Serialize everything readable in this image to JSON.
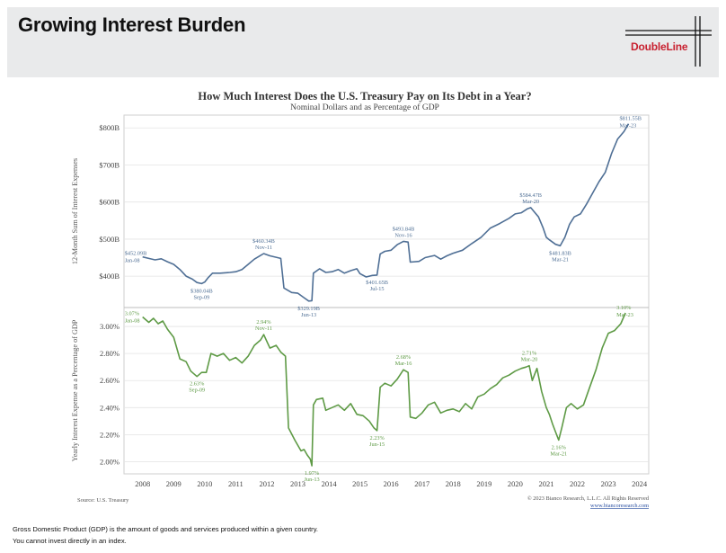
{
  "header": {
    "title": "Growing Interest Burden",
    "logo_text": "DoubleLine"
  },
  "footer": {
    "line1": "Gross Domestic Product (GDP) is the amount of goods and services produced within a given country.",
    "line2": "You cannot invest directly in an index."
  },
  "chart_data": {
    "type": "line",
    "title": "How Much Interest Does the U.S. Treasury Pay on Its Debt in a Year?",
    "subtitle": "Nominal Dollars and as Percentage of GDP",
    "source": "Source: U.S. Treasury",
    "copyright": "© 2023 Bianco Research, L.L.C. All Rights Reserved",
    "website": "www.biancoresearch.com",
    "colors": {
      "dollars": "#4f6f95",
      "gdp": "#5e9a45"
    },
    "x_ticks": [
      "2008",
      "2009",
      "2010",
      "2011",
      "2012",
      "2013",
      "2014",
      "2015",
      "2016",
      "2017",
      "2018",
      "2019",
      "2020",
      "2021",
      "2022",
      "2023",
      "2024"
    ],
    "xlim": [
      2007.4,
      2024.3
    ],
    "panels": [
      {
        "name": "dollars",
        "ylabel": "12-Month Sum of Interest Expenses",
        "ylim": [
          330,
          820
        ],
        "y_ticks": [
          {
            "v": 400,
            "label": "$400B"
          },
          {
            "v": 500,
            "label": "$500B"
          },
          {
            "v": 600,
            "label": "$600B"
          },
          {
            "v": 700,
            "label": "$700B"
          },
          {
            "v": 800,
            "label": "$800B"
          }
        ],
        "series": [
          {
            "values": [
              [
                2008.0,
                452
              ],
              [
                2008.2,
                448
              ],
              [
                2008.4,
                444
              ],
              [
                2008.6,
                447
              ],
              [
                2008.8,
                439
              ],
              [
                2009.0,
                432
              ],
              [
                2009.2,
                418
              ],
              [
                2009.4,
                400
              ],
              [
                2009.6,
                392
              ],
              [
                2009.75,
                383
              ],
              [
                2009.9,
                380
              ],
              [
                2010.0,
                384
              ],
              [
                2010.1,
                395
              ],
              [
                2010.25,
                408
              ],
              [
                2010.5,
                408
              ],
              [
                2010.8,
                410
              ],
              [
                2011.0,
                412
              ],
              [
                2011.2,
                418
              ],
              [
                2011.4,
                432
              ],
              [
                2011.6,
                446
              ],
              [
                2011.8,
                456
              ],
              [
                2011.9,
                461
              ],
              [
                2012.1,
                455
              ],
              [
                2012.3,
                451
              ],
              [
                2012.45,
                448
              ],
              [
                2012.55,
                368
              ],
              [
                2012.8,
                356
              ],
              [
                2013.0,
                354
              ],
              [
                2013.2,
                342
              ],
              [
                2013.35,
                333
              ],
              [
                2013.45,
                334
              ],
              [
                2013.5,
                408
              ],
              [
                2013.7,
                420
              ],
              [
                2013.9,
                410
              ],
              [
                2014.1,
                412
              ],
              [
                2014.3,
                418
              ],
              [
                2014.5,
                408
              ],
              [
                2014.7,
                415
              ],
              [
                2014.9,
                420
              ],
              [
                2015.0,
                407
              ],
              [
                2015.2,
                398
              ],
              [
                2015.4,
                402
              ],
              [
                2015.55,
                403
              ],
              [
                2015.65,
                460
              ],
              [
                2015.8,
                467
              ],
              [
                2016.0,
                470
              ],
              [
                2016.2,
                485
              ],
              [
                2016.4,
                494
              ],
              [
                2016.55,
                492
              ],
              [
                2016.62,
                438
              ],
              [
                2016.9,
                440
              ],
              [
                2017.1,
                450
              ],
              [
                2017.4,
                456
              ],
              [
                2017.6,
                446
              ],
              [
                2017.8,
                455
              ],
              [
                2018.0,
                462
              ],
              [
                2018.3,
                470
              ],
              [
                2018.6,
                488
              ],
              [
                2018.9,
                505
              ],
              [
                2019.2,
                530
              ],
              [
                2019.5,
                542
              ],
              [
                2019.8,
                556
              ],
              [
                2020.0,
                568
              ],
              [
                2020.2,
                571
              ],
              [
                2020.4,
                582
              ],
              [
                2020.5,
                585
              ],
              [
                2020.6,
                575
              ],
              [
                2020.75,
                560
              ],
              [
                2020.9,
                530
              ],
              [
                2021.0,
                505
              ],
              [
                2021.1,
                498
              ],
              [
                2021.3,
                486
              ],
              [
                2021.45,
                482
              ],
              [
                2021.6,
                505
              ],
              [
                2021.75,
                540
              ],
              [
                2021.9,
                560
              ],
              [
                2022.1,
                568
              ],
              [
                2022.3,
                595
              ],
              [
                2022.5,
                625
              ],
              [
                2022.7,
                655
              ],
              [
                2022.9,
                680
              ],
              [
                2023.1,
                730
              ],
              [
                2023.3,
                770
              ],
              [
                2023.5,
                790
              ],
              [
                2023.65,
                811
              ]
            ]
          }
        ],
        "annotations": [
          {
            "x": 2008.0,
            "y": 452,
            "label": "$452.09B",
            "date": "Jan-08"
          },
          {
            "x": 2009.9,
            "y": 380,
            "label": "$380.04B",
            "date": "Sep-09"
          },
          {
            "x": 2011.9,
            "y": 461,
            "label": "$460.34B",
            "date": "Nov-11"
          },
          {
            "x": 2013.35,
            "y": 333,
            "label": "$329.19B",
            "date": "Jun-13"
          },
          {
            "x": 2016.4,
            "y": 494,
            "label": "$493.84B",
            "date": "Nov-16"
          },
          {
            "x": 2015.55,
            "y": 403,
            "label": "$401.65B",
            "date": "Jul-15"
          },
          {
            "x": 2020.5,
            "y": 585,
            "label": "$584.47B",
            "date": "Mar-20"
          },
          {
            "x": 2021.45,
            "y": 482,
            "label": "$481.83B",
            "date": "Mar-21"
          },
          {
            "x": 2023.65,
            "y": 811,
            "label": "$811.55B",
            "date": "Mar-23"
          }
        ]
      },
      {
        "name": "gdp",
        "ylabel": "Yearly Interest Expense as a Percentage of GDP",
        "ylim": [
          1.95,
          3.1
        ],
        "y_ticks": [
          {
            "v": 2.0,
            "label": "2.00%"
          },
          {
            "v": 2.2,
            "label": "2.20%"
          },
          {
            "v": 2.4,
            "label": "2.40%"
          },
          {
            "v": 2.6,
            "label": "2.60%"
          },
          {
            "v": 2.8,
            "label": "2.80%"
          },
          {
            "v": 3.0,
            "label": "3.00%"
          }
        ],
        "series": [
          {
            "values": [
              [
                2008.0,
                3.07
              ],
              [
                2008.2,
                3.03
              ],
              [
                2008.35,
                3.06
              ],
              [
                2008.5,
                3.02
              ],
              [
                2008.65,
                3.04
              ],
              [
                2008.8,
                2.98
              ],
              [
                2009.0,
                2.92
              ],
              [
                2009.2,
                2.76
              ],
              [
                2009.4,
                2.74
              ],
              [
                2009.55,
                2.67
              ],
              [
                2009.75,
                2.63
              ],
              [
                2009.9,
                2.66
              ],
              [
                2010.05,
                2.66
              ],
              [
                2010.2,
                2.8
              ],
              [
                2010.4,
                2.78
              ],
              [
                2010.6,
                2.8
              ],
              [
                2010.8,
                2.75
              ],
              [
                2011.0,
                2.77
              ],
              [
                2011.2,
                2.73
              ],
              [
                2011.4,
                2.78
              ],
              [
                2011.6,
                2.86
              ],
              [
                2011.8,
                2.9
              ],
              [
                2011.9,
                2.94
              ],
              [
                2012.1,
                2.84
              ],
              [
                2012.3,
                2.86
              ],
              [
                2012.45,
                2.81
              ],
              [
                2012.6,
                2.78
              ],
              [
                2012.7,
                2.25
              ],
              [
                2012.9,
                2.16
              ],
              [
                2013.1,
                2.08
              ],
              [
                2013.2,
                2.09
              ],
              [
                2013.3,
                2.05
              ],
              [
                2013.4,
                2.02
              ],
              [
                2013.45,
                1.97
              ],
              [
                2013.5,
                2.42
              ],
              [
                2013.6,
                2.46
              ],
              [
                2013.8,
                2.47
              ],
              [
                2013.9,
                2.38
              ],
              [
                2014.1,
                2.4
              ],
              [
                2014.3,
                2.42
              ],
              [
                2014.5,
                2.38
              ],
              [
                2014.7,
                2.43
              ],
              [
                2014.9,
                2.35
              ],
              [
                2015.1,
                2.34
              ],
              [
                2015.3,
                2.3
              ],
              [
                2015.45,
                2.25
              ],
              [
                2015.55,
                2.23
              ],
              [
                2015.65,
                2.55
              ],
              [
                2015.8,
                2.58
              ],
              [
                2016.0,
                2.56
              ],
              [
                2016.2,
                2.61
              ],
              [
                2016.4,
                2.68
              ],
              [
                2016.55,
                2.66
              ],
              [
                2016.62,
                2.33
              ],
              [
                2016.8,
                2.32
              ],
              [
                2017.0,
                2.36
              ],
              [
                2017.2,
                2.42
              ],
              [
                2017.4,
                2.44
              ],
              [
                2017.6,
                2.36
              ],
              [
                2017.8,
                2.38
              ],
              [
                2018.0,
                2.39
              ],
              [
                2018.2,
                2.37
              ],
              [
                2018.4,
                2.43
              ],
              [
                2018.6,
                2.39
              ],
              [
                2018.8,
                2.48
              ],
              [
                2019.0,
                2.5
              ],
              [
                2019.2,
                2.54
              ],
              [
                2019.4,
                2.57
              ],
              [
                2019.6,
                2.62
              ],
              [
                2019.8,
                2.64
              ],
              [
                2020.0,
                2.67
              ],
              [
                2020.2,
                2.69
              ],
              [
                2020.35,
                2.7
              ],
              [
                2020.45,
                2.71
              ],
              [
                2020.55,
                2.6
              ],
              [
                2020.7,
                2.69
              ],
              [
                2020.85,
                2.52
              ],
              [
                2021.0,
                2.4
              ],
              [
                2021.1,
                2.35
              ],
              [
                2021.2,
                2.28
              ],
              [
                2021.3,
                2.22
              ],
              [
                2021.4,
                2.16
              ],
              [
                2021.5,
                2.25
              ],
              [
                2021.65,
                2.4
              ],
              [
                2021.8,
                2.43
              ],
              [
                2022.0,
                2.39
              ],
              [
                2022.2,
                2.42
              ],
              [
                2022.4,
                2.55
              ],
              [
                2022.6,
                2.68
              ],
              [
                2022.8,
                2.84
              ],
              [
                2023.0,
                2.95
              ],
              [
                2023.2,
                2.97
              ],
              [
                2023.4,
                3.02
              ],
              [
                2023.55,
                3.1
              ]
            ]
          }
        ],
        "annotations": [
          {
            "x": 2008.0,
            "y": 3.07,
            "label": "3.07%",
            "date": "Jan-08"
          },
          {
            "x": 2009.75,
            "y": 2.63,
            "label": "2.63%",
            "date": "Sep-09"
          },
          {
            "x": 2011.9,
            "y": 2.94,
            "label": "2.94%",
            "date": "Nov-11"
          },
          {
            "x": 2013.45,
            "y": 1.97,
            "label": "1.97%",
            "date": "Jun-13"
          },
          {
            "x": 2015.55,
            "y": 2.23,
            "label": "2.23%",
            "date": "Jun-15"
          },
          {
            "x": 2016.4,
            "y": 2.68,
            "label": "2.68%",
            "date": "Mar-16"
          },
          {
            "x": 2020.45,
            "y": 2.71,
            "label": "2.71%",
            "date": "Mar-20"
          },
          {
            "x": 2021.4,
            "y": 2.16,
            "label": "2.16%",
            "date": "Mar-21"
          },
          {
            "x": 2023.55,
            "y": 3.1,
            "label": "3.10%",
            "date": "Mar-23"
          }
        ]
      }
    ]
  }
}
